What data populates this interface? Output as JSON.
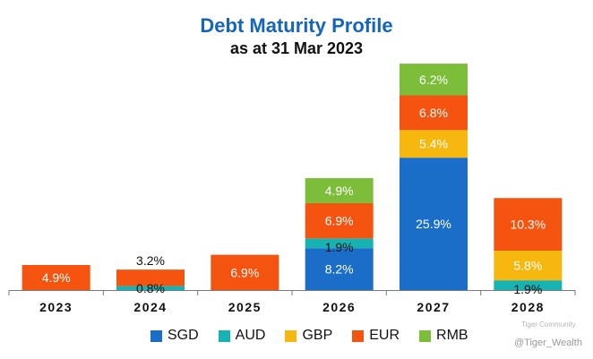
{
  "chart_data": {
    "type": "bar",
    "stacked": true,
    "title": "Debt Maturity Profile",
    "subtitle": "as at 31 Mar 2023",
    "categories": [
      "2023",
      "2024",
      "2025",
      "2026",
      "2027",
      "2028"
    ],
    "ylim": [
      0,
      55
    ],
    "series": [
      {
        "name": "SGD",
        "color": "#1a6ec8",
        "values": [
          0,
          0,
          0,
          8.2,
          25.9,
          0
        ],
        "labels": [
          "",
          "",
          "",
          "8.2%",
          "25.9%",
          ""
        ]
      },
      {
        "name": "AUD",
        "color": "#17b2b2",
        "values": [
          0,
          0.8,
          0,
          1.9,
          0,
          1.9
        ],
        "labels": [
          "",
          "0.8%",
          "",
          "1.9%",
          "",
          "1.9%"
        ]
      },
      {
        "name": "GBP",
        "color": "#f6b80f",
        "values": [
          0,
          0,
          0,
          0,
          5.4,
          5.8
        ],
        "labels": [
          "",
          "",
          "",
          "",
          "5.4%",
          "5.8%"
        ]
      },
      {
        "name": "EUR",
        "color": "#f55410",
        "values": [
          4.9,
          3.2,
          6.9,
          6.9,
          6.8,
          10.3
        ],
        "labels": [
          "4.9%",
          "3.2%",
          "6.9%",
          "6.9%",
          "6.8%",
          "10.3%"
        ]
      },
      {
        "name": "RMB",
        "color": "#7cbd3a",
        "values": [
          0,
          0,
          0,
          4.9,
          6.2,
          0
        ],
        "labels": [
          "",
          "",
          "",
          "4.9%",
          "6.2%",
          ""
        ]
      }
    ],
    "xlabel": "",
    "ylabel": "",
    "legend": "bottom",
    "grid": false
  },
  "watermark": {
    "line1": "Tiger Community",
    "line2": "@Tiger_Wealth"
  }
}
